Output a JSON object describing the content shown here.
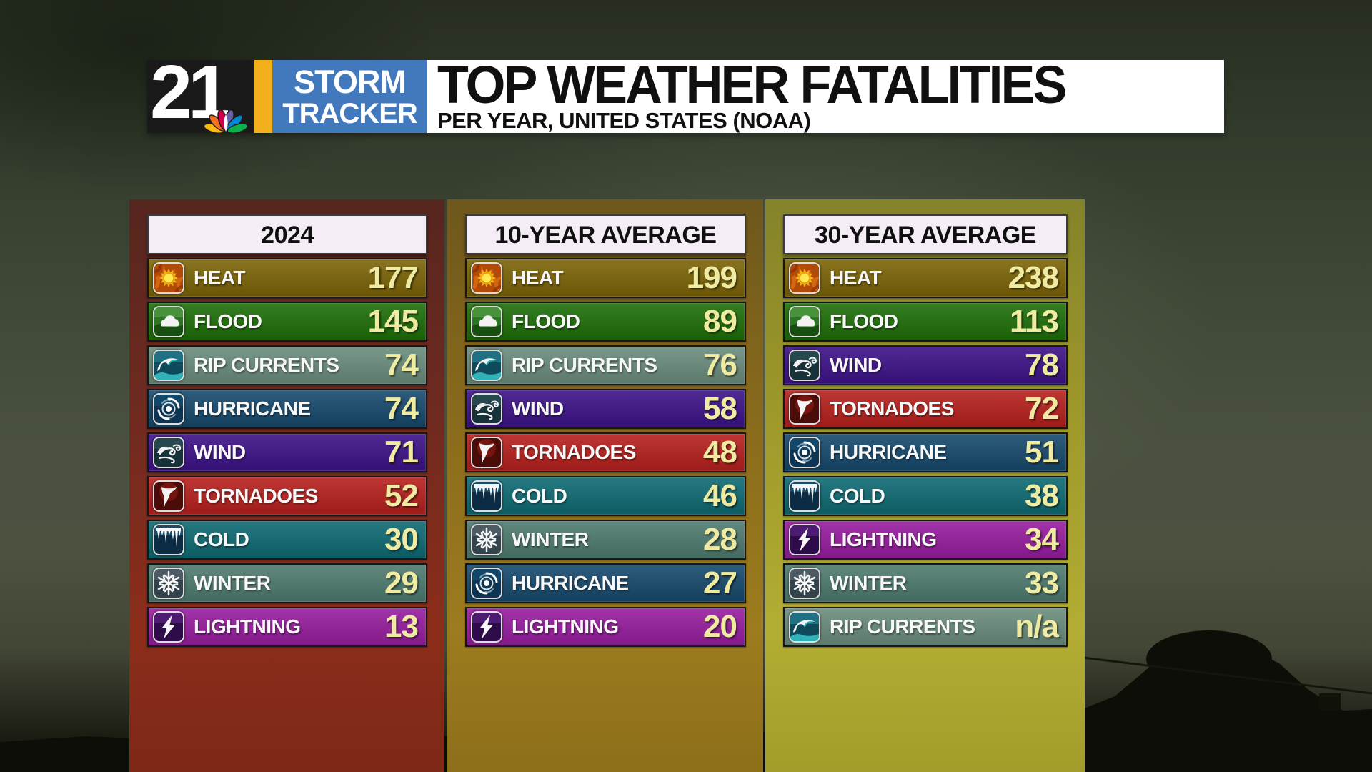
{
  "header": {
    "channel": "21",
    "brand_top": "STORM",
    "brand_bottom": "TRACKER",
    "title": "TOP WEATHER FATALITIES",
    "subtitle": "PER YEAR, UNITED STATES (NOAA)"
  },
  "colors": {
    "value_text": "#f0eba2",
    "label_text": "#f8f8f8",
    "header_box_bg": "#f4edf5",
    "header_box_text": "#101010",
    "stripe_yellow": "#f2b01c",
    "brand_blue": "#4279bd",
    "logo_black": "#1a1a1a",
    "titlebar_white": "#ffffff"
  },
  "category_colors": {
    "heat": "#7c6407",
    "flood": "#1e6f08",
    "rip-currents": "#6b8d7d",
    "hurricane": "#174a6e",
    "wind": "#3d1288",
    "tornadoes": "#b7201d",
    "cold": "#0e6a73",
    "winter": "#4e7b6f",
    "lightning": "#971d9f"
  },
  "columns": [
    {
      "header": "2024",
      "tint": [
        "#56261f",
        "#6e2a20",
        "#8c2d1b",
        "#7e2817"
      ],
      "rows": [
        {
          "icon": "heat-icon",
          "category": "heat",
          "label": "HEAT",
          "value": "177"
        },
        {
          "icon": "flood-icon",
          "category": "flood",
          "label": "FLOOD",
          "value": "145"
        },
        {
          "icon": "rip-currents-icon",
          "category": "rip-currents",
          "label": "RIP CURRENTS",
          "value": "74"
        },
        {
          "icon": "hurricane-icon",
          "category": "hurricane",
          "label": "HURRICANE",
          "value": "74"
        },
        {
          "icon": "wind-icon",
          "category": "wind",
          "label": "WIND",
          "value": "71"
        },
        {
          "icon": "tornadoes-icon",
          "category": "tornadoes",
          "label": "TORNADOES",
          "value": "52"
        },
        {
          "icon": "cold-icon",
          "category": "cold",
          "label": "COLD",
          "value": "30"
        },
        {
          "icon": "winter-icon",
          "category": "winter",
          "label": "WINTER",
          "value": "29"
        },
        {
          "icon": "lightning-icon",
          "category": "lightning",
          "label": "LIGHTNING",
          "value": "13"
        }
      ]
    },
    {
      "header": "10-YEAR AVERAGE",
      "tint": [
        "#6e571c",
        "#86691c",
        "#9d7c1e",
        "#8d6f1a"
      ],
      "rows": [
        {
          "icon": "heat-icon",
          "category": "heat",
          "label": "HEAT",
          "value": "199"
        },
        {
          "icon": "flood-icon",
          "category": "flood",
          "label": "FLOOD",
          "value": "89"
        },
        {
          "icon": "rip-currents-icon",
          "category": "rip-currents",
          "label": "RIP CURRENTS",
          "value": "76"
        },
        {
          "icon": "wind-icon",
          "category": "wind",
          "label": "WIND",
          "value": "58"
        },
        {
          "icon": "tornadoes-icon",
          "category": "tornadoes",
          "label": "TORNADOES",
          "value": "48"
        },
        {
          "icon": "cold-icon",
          "category": "cold",
          "label": "COLD",
          "value": "46"
        },
        {
          "icon": "winter-icon",
          "category": "winter",
          "label": "WINTER",
          "value": "28"
        },
        {
          "icon": "hurricane-icon",
          "category": "hurricane",
          "label": "HURRICANE",
          "value": "27"
        },
        {
          "icon": "lightning-icon",
          "category": "lightning",
          "label": "LIGHTNING",
          "value": "20"
        }
      ]
    },
    {
      "header": "30-YEAR AVERAGE",
      "tint": [
        "#85832a",
        "#9c9729",
        "#b3ad33",
        "#a29d2a"
      ],
      "rows": [
        {
          "icon": "heat-icon",
          "category": "heat",
          "label": "HEAT",
          "value": "238"
        },
        {
          "icon": "flood-icon",
          "category": "flood",
          "label": "FLOOD",
          "value": "113"
        },
        {
          "icon": "wind-icon",
          "category": "wind",
          "label": "WIND",
          "value": "78"
        },
        {
          "icon": "tornadoes-icon",
          "category": "tornadoes",
          "label": "TORNADOES",
          "value": "72"
        },
        {
          "icon": "hurricane-icon",
          "category": "hurricane",
          "label": "HURRICANE",
          "value": "51"
        },
        {
          "icon": "cold-icon",
          "category": "cold",
          "label": "COLD",
          "value": "38"
        },
        {
          "icon": "lightning-icon",
          "category": "lightning",
          "label": "LIGHTNING",
          "value": "34"
        },
        {
          "icon": "winter-icon",
          "category": "winter",
          "label": "WINTER",
          "value": "33"
        },
        {
          "icon": "rip-currents-icon",
          "category": "rip-currents",
          "label": "RIP CURRENTS",
          "value": "n/a"
        }
      ]
    }
  ],
  "chart_data": {
    "type": "table",
    "title": "TOP WEATHER FATALITIES",
    "subtitle": "PER YEAR, UNITED STATES (NOAA)",
    "columns": [
      "2024",
      "10-YEAR AVERAGE",
      "30-YEAR AVERAGE"
    ],
    "series": [
      {
        "name": "2024",
        "rows": [
          [
            "HEAT",
            177
          ],
          [
            "FLOOD",
            145
          ],
          [
            "RIP CURRENTS",
            74
          ],
          [
            "HURRICANE",
            74
          ],
          [
            "WIND",
            71
          ],
          [
            "TORNADOES",
            52
          ],
          [
            "COLD",
            30
          ],
          [
            "WINTER",
            29
          ],
          [
            "LIGHTNING",
            13
          ]
        ]
      },
      {
        "name": "10-YEAR AVERAGE",
        "rows": [
          [
            "HEAT",
            199
          ],
          [
            "FLOOD",
            89
          ],
          [
            "RIP CURRENTS",
            76
          ],
          [
            "WIND",
            58
          ],
          [
            "TORNADOES",
            48
          ],
          [
            "COLD",
            46
          ],
          [
            "WINTER",
            28
          ],
          [
            "HURRICANE",
            27
          ],
          [
            "LIGHTNING",
            20
          ]
        ]
      },
      {
        "name": "30-YEAR AVERAGE",
        "rows": [
          [
            "HEAT",
            238
          ],
          [
            "FLOOD",
            113
          ],
          [
            "WIND",
            78
          ],
          [
            "TORNADOES",
            72
          ],
          [
            "HURRICANE",
            51
          ],
          [
            "COLD",
            38
          ],
          [
            "LIGHTNING",
            34
          ],
          [
            "WINTER",
            33
          ],
          [
            "RIP CURRENTS",
            "n/a"
          ]
        ]
      }
    ]
  }
}
